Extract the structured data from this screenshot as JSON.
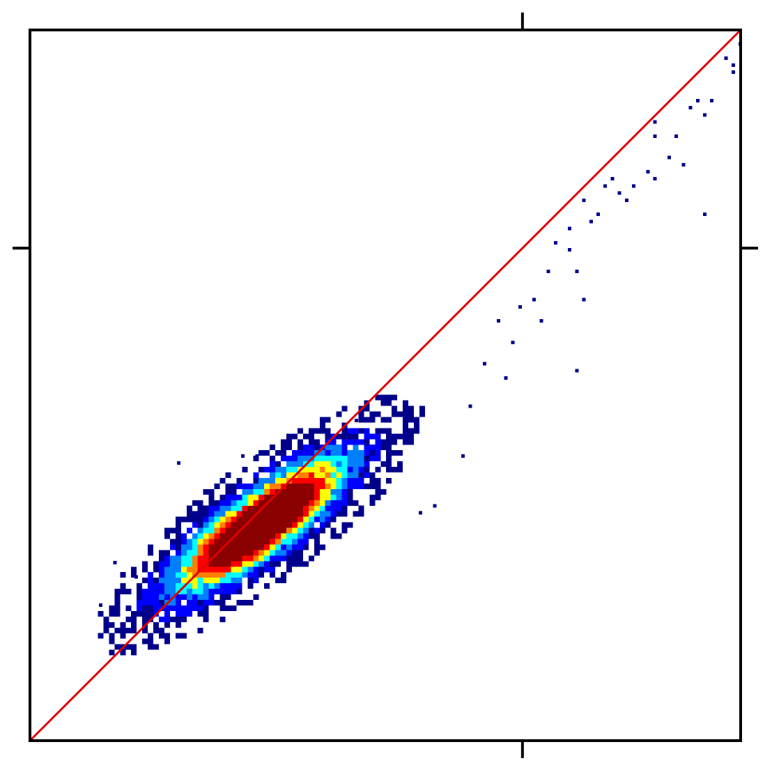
{
  "chart_data": {
    "type": "heatmap",
    "subtype": "2d-density-scatter",
    "title": "",
    "xlabel": "",
    "ylabel": "",
    "tick_labels": [],
    "xlim": [
      0,
      1
    ],
    "ylim": [
      0,
      1
    ],
    "x_ticks": [
      0.693
    ],
    "y_ticks": [
      0.693
    ],
    "grid": false,
    "legend": "none",
    "reference_line": {
      "from": [
        0,
        0
      ],
      "to": [
        1,
        1
      ],
      "color": "#e00000"
    },
    "colormap": [
      "#00008b",
      "#0000ff",
      "#0080ff",
      "#00ffff",
      "#ffff00",
      "#ff8000",
      "#ff0000",
      "#8b0000"
    ],
    "density": {
      "center": [
        0.32,
        0.3
      ],
      "major_axis_direction": [
        0.8,
        0.6
      ],
      "major_sd": 0.095,
      "minor_sd": 0.028,
      "core_extent": [
        [
          0.25,
          0.26
        ],
        [
          0.36,
          0.32
        ]
      ]
    },
    "sparse_points": [
      [
        0.1,
        0.19
      ],
      [
        0.14,
        0.21
      ],
      [
        0.15,
        0.23
      ],
      [
        0.12,
        0.25
      ],
      [
        0.21,
        0.39
      ],
      [
        0.3,
        0.4
      ],
      [
        0.32,
        0.4
      ],
      [
        0.46,
        0.45
      ],
      [
        0.55,
        0.32
      ],
      [
        0.57,
        0.33
      ],
      [
        0.61,
        0.4
      ],
      [
        0.62,
        0.47
      ],
      [
        0.64,
        0.53
      ],
      [
        0.66,
        0.59
      ],
      [
        0.67,
        0.51
      ],
      [
        0.68,
        0.56
      ],
      [
        0.69,
        0.61
      ],
      [
        0.71,
        0.62
      ],
      [
        0.72,
        0.59
      ],
      [
        0.73,
        0.66
      ],
      [
        0.74,
        0.7
      ],
      [
        0.76,
        0.69
      ],
      [
        0.77,
        0.66
      ],
      [
        0.76,
        0.72
      ],
      [
        0.78,
        0.76
      ],
      [
        0.79,
        0.73
      ],
      [
        0.8,
        0.74
      ],
      [
        0.78,
        0.62
      ],
      [
        0.77,
        0.52
      ],
      [
        0.81,
        0.78
      ],
      [
        0.82,
        0.79
      ],
      [
        0.83,
        0.77
      ],
      [
        0.85,
        0.78
      ],
      [
        0.84,
        0.76
      ],
      [
        0.87,
        0.8
      ],
      [
        0.88,
        0.79
      ],
      [
        0.9,
        0.82
      ],
      [
        0.92,
        0.81
      ],
      [
        0.95,
        0.74
      ],
      [
        0.88,
        0.87
      ],
      [
        0.88,
        0.85
      ],
      [
        0.91,
        0.85
      ],
      [
        0.93,
        0.89
      ],
      [
        0.94,
        0.9
      ],
      [
        0.95,
        0.88
      ],
      [
        0.96,
        0.9
      ],
      [
        0.99,
        0.95
      ],
      [
        0.98,
        0.96
      ],
      [
        1.0,
        0.98
      ],
      [
        0.99,
        0.94
      ]
    ]
  }
}
